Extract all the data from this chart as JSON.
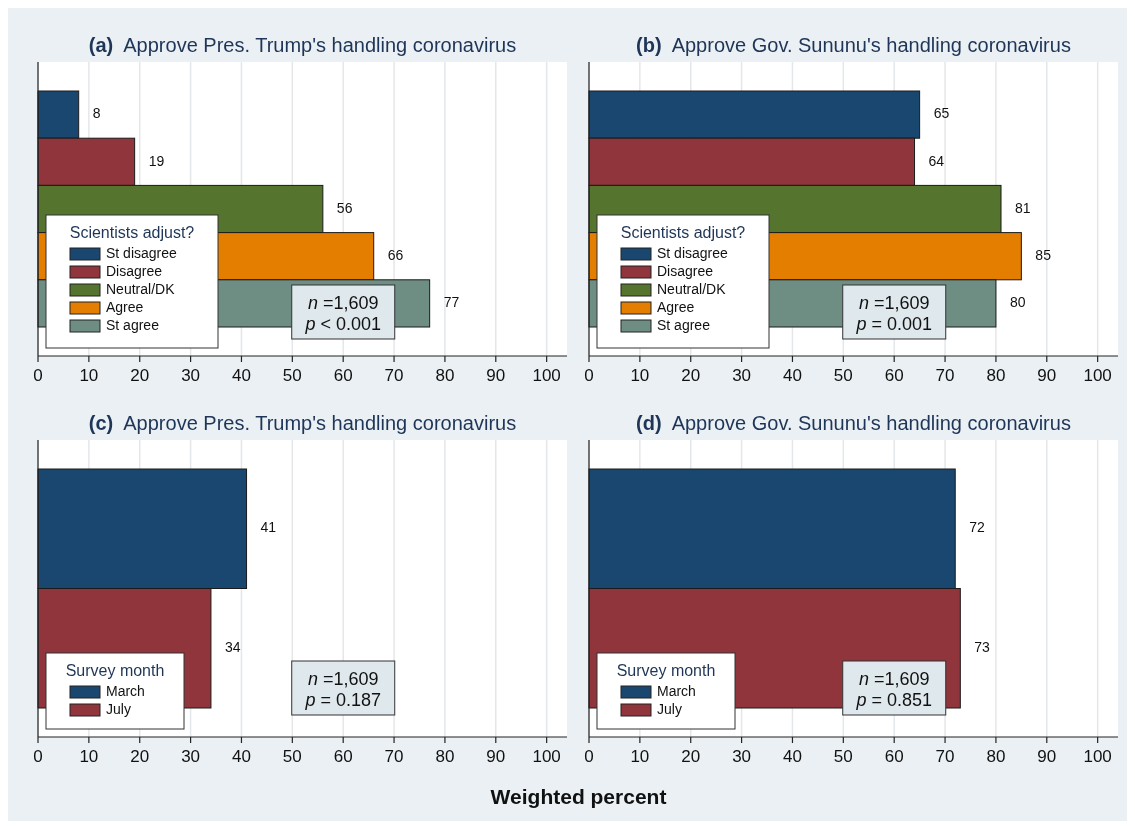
{
  "chart_data": [
    {
      "type": "bar",
      "orientation": "horizontal",
      "title": "(a)  Approve Pres. Trump's handling coronavirus",
      "categories": [
        null
      ],
      "series": [
        {
          "name": "St disagree",
          "color": "#1a476f",
          "values": [
            8
          ]
        },
        {
          "name": "Disagree",
          "color": "#90353b",
          "values": [
            19
          ]
        },
        {
          "name": "Neutral/DK",
          "color": "#55752f",
          "values": [
            56
          ]
        },
        {
          "name": "Agree",
          "color": "#e37e00",
          "values": [
            66
          ]
        },
        {
          "name": "St agree",
          "color": "#6e8e84",
          "values": [
            77
          ]
        }
      ],
      "data_labels": true,
      "xlim": [
        0,
        104
      ],
      "xticks": [
        0,
        10,
        20,
        30,
        40,
        50,
        60,
        70,
        80,
        90,
        100
      ],
      "grid": "x",
      "legend": "bottom left",
      "legend_title": "Scientists adjust?",
      "annotations": [
        "n =1,609",
        "p < 0.001"
      ]
    },
    {
      "type": "bar",
      "orientation": "horizontal",
      "title": "(b)  Approve Gov. Sununu's handling coronavirus",
      "categories": [
        null
      ],
      "series": [
        {
          "name": "St disagree",
          "color": "#1a476f",
          "values": [
            65
          ]
        },
        {
          "name": "Disagree",
          "color": "#90353b",
          "values": [
            64
          ]
        },
        {
          "name": "Neutral/DK",
          "color": "#55752f",
          "values": [
            81
          ]
        },
        {
          "name": "Agree",
          "color": "#e37e00",
          "values": [
            85
          ]
        },
        {
          "name": "St agree",
          "color": "#6e8e84",
          "values": [
            80
          ]
        }
      ],
      "data_labels": true,
      "xlim": [
        0,
        104
      ],
      "xticks": [
        0,
        10,
        20,
        30,
        40,
        50,
        60,
        70,
        80,
        90,
        100
      ],
      "grid": "x",
      "legend": "bottom left",
      "legend_title": "Scientists adjust?",
      "annotations": [
        "n =1,609",
        "p = 0.001"
      ]
    },
    {
      "type": "bar",
      "orientation": "horizontal",
      "title": "(c)  Approve Pres. Trump's handling coronavirus",
      "categories": [
        null
      ],
      "series": [
        {
          "name": "March",
          "color": "#1a476f",
          "values": [
            41
          ]
        },
        {
          "name": "July",
          "color": "#90353b",
          "values": [
            34
          ]
        }
      ],
      "data_labels": true,
      "xlim": [
        0,
        104
      ],
      "xticks": [
        0,
        10,
        20,
        30,
        40,
        50,
        60,
        70,
        80,
        90,
        100
      ],
      "grid": "x",
      "legend": "bottom left",
      "legend_title": "Survey month",
      "annotations": [
        "n =1,609",
        "p = 0.187"
      ],
      "xlabel": "Weighted percent"
    },
    {
      "type": "bar",
      "orientation": "horizontal",
      "title": "(d)  Approve Gov. Sununu's handling coronavirus",
      "categories": [
        null
      ],
      "series": [
        {
          "name": "March",
          "color": "#1a476f",
          "values": [
            72
          ]
        },
        {
          "name": "July",
          "color": "#90353b",
          "values": [
            73
          ]
        }
      ],
      "data_labels": true,
      "xlim": [
        0,
        104
      ],
      "xticks": [
        0,
        10,
        20,
        30,
        40,
        50,
        60,
        70,
        80,
        90,
        100
      ],
      "grid": "x",
      "legend": "bottom left",
      "legend_title": "Survey month",
      "annotations": [
        "n =1,609",
        "p = 0.851"
      ]
    }
  ]
}
